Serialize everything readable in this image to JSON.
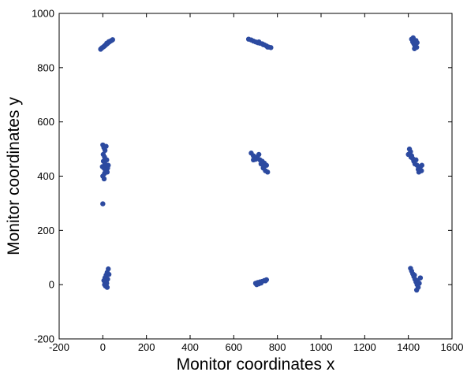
{
  "chart_data": {
    "type": "scatter",
    "xlabel": "Monitor coordinates x",
    "ylabel": "Monitor coordinates y",
    "xlim": [
      -200,
      1600
    ],
    "ylim": [
      -200,
      1000
    ],
    "xticks": [
      "-200",
      "0",
      "200",
      "400",
      "600",
      "800",
      "1000",
      "1200",
      "1400",
      "1600"
    ],
    "yticks": [
      "-200",
      "0",
      "200",
      "400",
      "600",
      "800",
      "1000"
    ],
    "grid": false,
    "marker_color": "#2c4aa0",
    "points": [
      [
        -10,
        868
      ],
      [
        -5,
        872
      ],
      [
        0,
        875
      ],
      [
        5,
        878
      ],
      [
        10,
        882
      ],
      [
        15,
        885
      ],
      [
        20,
        888
      ],
      [
        25,
        892
      ],
      [
        30,
        895
      ],
      [
        35,
        898
      ],
      [
        40,
        900
      ],
      [
        45,
        903
      ],
      [
        8,
        880
      ],
      [
        18,
        890
      ],
      [
        28,
        896
      ],
      [
        668,
        905
      ],
      [
        680,
        902
      ],
      [
        690,
        898
      ],
      [
        700,
        895
      ],
      [
        710,
        892
      ],
      [
        720,
        890
      ],
      [
        730,
        888
      ],
      [
        740,
        884
      ],
      [
        750,
        880
      ],
      [
        760,
        876
      ],
      [
        770,
        874
      ],
      [
        715,
        895
      ],
      [
        735,
        885
      ],
      [
        755,
        876
      ],
      [
        1415,
        905
      ],
      [
        1420,
        895
      ],
      [
        1425,
        888
      ],
      [
        1430,
        880
      ],
      [
        1435,
        900
      ],
      [
        1440,
        892
      ],
      [
        1428,
        870
      ],
      [
        1438,
        875
      ],
      [
        1422,
        910
      ],
      [
        1432,
        885
      ],
      [
        0,
        515
      ],
      [
        5,
        505
      ],
      [
        10,
        495
      ],
      [
        2,
        480
      ],
      [
        8,
        470
      ],
      [
        15,
        510
      ],
      [
        3,
        455
      ],
      [
        10,
        445
      ],
      [
        5,
        430
      ],
      [
        12,
        420
      ],
      [
        8,
        410
      ],
      [
        0,
        400
      ],
      [
        20,
        415
      ],
      [
        25,
        440
      ],
      [
        18,
        460
      ],
      [
        22,
        430
      ],
      [
        6,
        390
      ],
      [
        15,
        425
      ],
      [
        -2,
        435
      ],
      [
        0,
        298
      ],
      [
        680,
        485
      ],
      [
        690,
        475
      ],
      [
        700,
        470
      ],
      [
        710,
        465
      ],
      [
        720,
        460
      ],
      [
        730,
        455
      ],
      [
        740,
        448
      ],
      [
        750,
        440
      ],
      [
        735,
        430
      ],
      [
        745,
        420
      ],
      [
        700,
        462
      ],
      [
        715,
        480
      ],
      [
        725,
        445
      ],
      [
        738,
        435
      ],
      [
        755,
        415
      ],
      [
        690,
        460
      ],
      [
        1405,
        500
      ],
      [
        1410,
        490
      ],
      [
        1415,
        475
      ],
      [
        1420,
        465
      ],
      [
        1425,
        455
      ],
      [
        1430,
        445
      ],
      [
        1440,
        440
      ],
      [
        1450,
        430
      ],
      [
        1460,
        420
      ],
      [
        1445,
        425
      ],
      [
        1435,
        460
      ],
      [
        1455,
        435
      ],
      [
        1400,
        480
      ],
      [
        1412,
        470
      ],
      [
        1462,
        440
      ],
      [
        1448,
        415
      ],
      [
        5,
        15
      ],
      [
        10,
        25
      ],
      [
        15,
        35
      ],
      [
        20,
        45
      ],
      [
        25,
        58
      ],
      [
        18,
        5
      ],
      [
        12,
        -5
      ],
      [
        22,
        20
      ],
      [
        8,
        0
      ],
      [
        15,
        30
      ],
      [
        20,
        -10
      ],
      [
        28,
        38
      ],
      [
        10,
        10
      ],
      [
        700,
        5
      ],
      [
        710,
        8
      ],
      [
        720,
        10
      ],
      [
        730,
        12
      ],
      [
        740,
        15
      ],
      [
        750,
        18
      ],
      [
        705,
        0
      ],
      [
        725,
        6
      ],
      [
        745,
        14
      ],
      [
        715,
        3
      ],
      [
        1410,
        60
      ],
      [
        1415,
        50
      ],
      [
        1420,
        40
      ],
      [
        1425,
        30
      ],
      [
        1430,
        20
      ],
      [
        1435,
        10
      ],
      [
        1440,
        0
      ],
      [
        1445,
        -10
      ],
      [
        1438,
        -20
      ],
      [
        1450,
        5
      ],
      [
        1428,
        35
      ],
      [
        1442,
        15
      ],
      [
        1455,
        25
      ]
    ]
  }
}
